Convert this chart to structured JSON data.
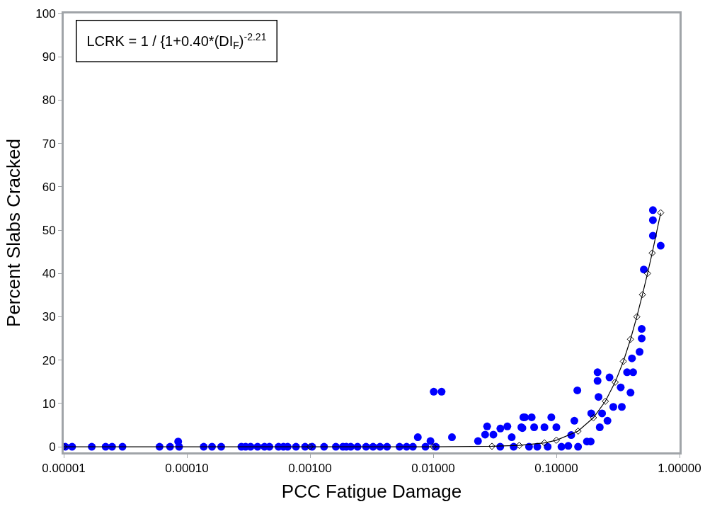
{
  "chart_data": {
    "type": "scatter",
    "xlabel": "PCC Fatigue Damage",
    "ylabel": "Percent Slabs Cracked",
    "annotations": [
      "LCRK = 1 / {1+0.40*(DI$_{F}$)$^{-2.21}$"
    ],
    "log": "x",
    "grid": false,
    "xlim": [
      1e-05,
      1
    ],
    "ylim": [
      -1.3,
      100
    ],
    "xticks": [
      {
        "value": 1e-05,
        "label": "0.00001"
      },
      {
        "value": 0.0001,
        "label": "0.00010"
      },
      {
        "value": 0.001,
        "label": "0.00100"
      },
      {
        "value": 0.01,
        "label": "0.01000"
      },
      {
        "value": 0.1,
        "label": "0.10000"
      },
      {
        "value": 1,
        "label": "1.00000"
      }
    ],
    "yticks": [
      0,
      10,
      20,
      30,
      40,
      50,
      60,
      70,
      80,
      90,
      100
    ],
    "series": [
      {
        "marker": "circle",
        "color": "#0000ff",
        "x": [
          1.03e-05,
          1.17e-05,
          1.69e-05,
          2.19e-05,
          2.47e-05,
          3e-05,
          6e-05,
          7.3e-05,
          8.65e-05,
          8.5e-05,
          0.000137,
          0.00016,
          0.00019,
          0.000277,
          0.0003,
          0.000329,
          0.000375,
          0.000427,
          0.000468,
          0.000555,
          0.000608,
          0.000658,
          0.000769,
          0.000912,
          0.00104,
          0.0013,
          0.00162,
          0.00185,
          0.00197,
          0.00214,
          0.00243,
          0.00285,
          0.00325,
          0.0037,
          0.00422,
          0.00533,
          0.00608,
          0.00684,
          0.00865,
          0.0105,
          0.0101,
          0.0117,
          0.0075,
          0.0095,
          0.0142,
          0.0231,
          0.0274,
          0.0264,
          0.0308,
          0.0351,
          0.04,
          0.0434,
          0.054,
          0.053,
          0.0555,
          0.063,
          0.066,
          0.08,
          0.091,
          0.1,
          0.052,
          0.15,
          0.177,
          0.19,
          0.132,
          0.125,
          0.035,
          0.045,
          0.06,
          0.07,
          0.085,
          0.11,
          0.608,
          0.608,
          0.608,
          0.703,
          0.513,
          0.493,
          0.493,
          0.474,
          0.411,
          0.375,
          0.42,
          0.4,
          0.216,
          0.216,
          0.27,
          0.148,
          0.333,
          0.34,
          0.29,
          0.22,
          0.192,
          0.235,
          0.14,
          0.26,
          0.225
        ],
        "values": [
          0,
          0,
          0,
          0,
          0,
          0,
          0,
          0,
          0,
          1.2,
          0,
          0,
          0,
          0,
          0,
          0,
          0,
          0,
          0,
          0,
          0,
          0,
          0,
          0,
          0,
          0,
          0,
          0,
          0,
          0,
          0,
          0,
          0,
          0,
          0,
          0,
          0,
          0,
          0,
          0,
          12.7,
          12.7,
          2.2,
          1.3,
          2.2,
          1.3,
          4.7,
          2.8,
          2.8,
          4.2,
          4.7,
          2.2,
          6.8,
          4.3,
          6.8,
          6.8,
          4.5,
          4.5,
          6.8,
          4.5,
          4.5,
          0,
          1.2,
          1.2,
          2.7,
          0.2,
          0,
          0,
          0,
          0,
          0,
          0,
          54.6,
          52.3,
          48.7,
          46.4,
          40.9,
          27.2,
          25.0,
          21.9,
          20.4,
          17.2,
          17.2,
          12.5,
          17.2,
          15.2,
          16.0,
          13.0,
          13.7,
          9.2,
          9.2,
          11.5,
          7.7,
          7.7,
          6.0,
          6.0,
          4.5
        ]
      },
      {
        "type": "line",
        "marker": "diamond",
        "color": "#000000",
        "line_style": "solid",
        "x": [
          1e-05,
          0.001,
          0.01,
          0.03,
          0.05,
          0.08,
          0.1,
          0.15,
          0.2,
          0.25,
          0.3,
          0.35,
          0.4,
          0.45,
          0.5,
          0.55,
          0.6,
          0.703
        ],
        "values": [
          0,
          0,
          0,
          0.1,
          0.3,
          0.9,
          1.5,
          3.6,
          6.7,
          10.5,
          14.9,
          19.7,
          24.8,
          30.0,
          35.1,
          40.0,
          44.7,
          54.0
        ]
      }
    ]
  }
}
